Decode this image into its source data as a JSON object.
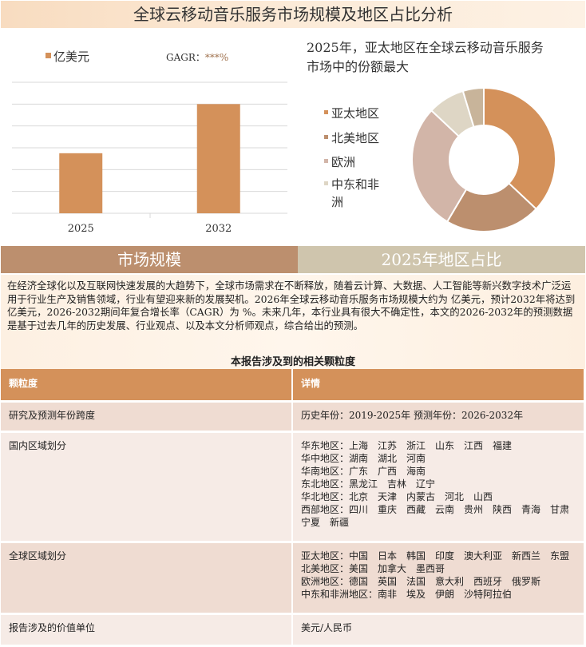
{
  "title": "全球云移动音乐服务市场规模及地区占比分析",
  "chart_data": [
    {
      "type": "bar",
      "categories": [
        "2025",
        "2032"
      ],
      "values": [
        2.75,
        5.0
      ],
      "legend": "亿美元",
      "annotation_label": "GAGR：",
      "annotation_value": "***%",
      "ylim": [
        0,
        6
      ],
      "grid": true,
      "color": "#d4915a"
    },
    {
      "type": "pie",
      "donut": true,
      "title": "2025年，亚太地区在全球云移动音乐服务市场中的份额最大",
      "labels": [
        "亚太地区",
        "北美地区",
        "欧洲",
        "中东和非洲",
        ""
      ],
      "values": [
        37,
        21.5,
        28.5,
        8.3,
        4.7
      ],
      "colors": [
        "#d4915a",
        "#bc8f6e",
        "#d2b5a8",
        "#ded6c5",
        "#c8b49a"
      ],
      "legend_placement": "left"
    }
  ],
  "tabs": [
    "市场规模",
    "2025年地区占比"
  ],
  "intro": "在经济全球化以及互联网快速发展的大趋势下，全球市场需求在不断释放，随着云计算、大数据、人工智能等新兴数字技术广泛运用于行业生产及销售领域，行业有望迎来新的发展契机。2026年全球云移动音乐服务市场规模大约为 亿美元，预计2032年将达到 亿美元，2026-2032期间年复合增长率（CAGR）为 %。未来几年，本行业具有很大不确定性，本文的2026-2032年的预测数据是基于过去几年的历史发展、行业观点、以及本文分析师观点，综合给出的预测。",
  "subtitle": "本报告涉及到的相关颗粒度",
  "table": {
    "headers": [
      "颗粒度",
      "详情"
    ],
    "rows": [
      {
        "label": "研究及预测年份跨度",
        "details": [
          "历史年份：2019-2025年 预测年份：2026-2032年"
        ]
      },
      {
        "label": "国内区域划分",
        "details": [
          "华东地区：上海　江苏　浙江　山东　江西　福建",
          "华中地区：湖南　湖北　河南",
          "华南地区：广东　广西　海南",
          "东北地区：黑龙江　吉林　辽宁",
          "华北地区：北京　天津　内蒙古　河北　山西",
          "西部地区：四川　重庆　西藏　云南　贵州　陕西　青海　甘肃　宁夏　新疆"
        ]
      },
      {
        "label": "全球区域划分",
        "details": [
          "亚太地区：中国　日本　韩国　印度　澳大利亚　新西兰　东盟",
          "北美地区：美国　加拿大　墨西哥",
          "欧洲地区：德国　英国　法国　意大利　西班牙　俄罗斯",
          "中东和非洲地区：南非　埃及　伊朗　沙特阿拉伯"
        ]
      },
      {
        "label": "报告涉及的价值单位",
        "details": [
          "美元/人民币"
        ]
      }
    ]
  }
}
